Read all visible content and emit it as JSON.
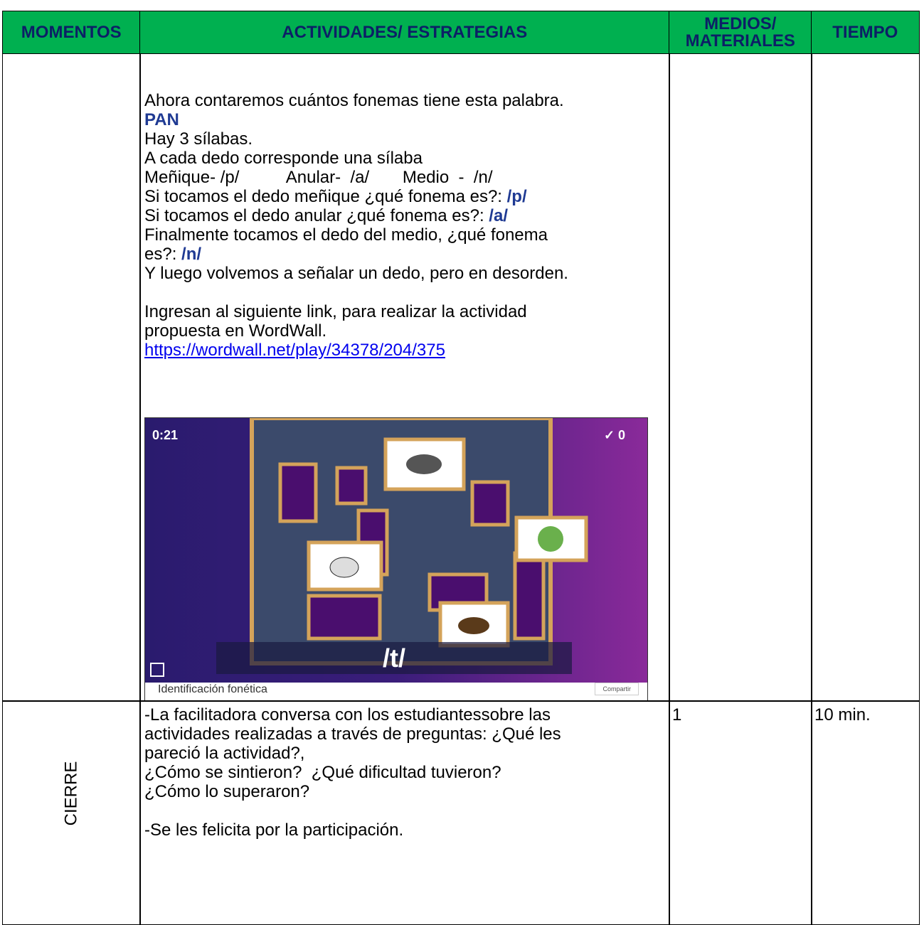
{
  "table": {
    "header": [
      "MOMENTOS",
      "ACTIVIDADES/ ESTRATEGIAS",
      "MEDIOS/ MATERIALES",
      "TIEMPO"
    ],
    "rows": [
      {
        "momento": "",
        "actividades": [
          [
            "Ahora contaremos cuántos fonemas tiene esta palabra."
          ],
          [
            {
              "strong": "PAN"
            }
          ],
          [
            "Hay 3 sílabas."
          ],
          [
            "A cada dedo corresponde una sílaba"
          ],
          [
            "Meñique- /p/          Anular-  /a/       Medio  -  /n/"
          ],
          [
            "Si tocamos el dedo meñique ¿qué fonema es?: ",
            {
              "strong": "/p/"
            }
          ],
          [
            "Si tocamos el dedo anular ¿qué fonema es?: ",
            {
              "strong": "/a/"
            }
          ],
          [
            "Finalmente tocamos el dedo del medio, ¿qué fonema"
          ],
          [
            "es?: ",
            {
              "strong": "/n/"
            }
          ],
          [
            "Y luego volvemos a señalar un dedo, pero en desorden."
          ],
          [],
          [
            "Ingresan al siguiente link, para realizar la actividad"
          ],
          [
            "propuesta en WordWall."
          ],
          [
            {
              "link": "https://wordwall.net/play/34378/204/375"
            }
          ]
        ],
        "screenshot": {
          "timer": "0:21",
          "score": "✓ 0",
          "sound": "/t/",
          "caption": "Identificación fonética",
          "button": "Compartir"
        },
        "medios": "",
        "tiempo": ""
      },
      {
        "momento": "CIERRE",
        "actividades": [
          [
            "-La facilitadora conversa con los estudiantessobre las"
          ],
          [
            "actividades realizadas a través de preguntas: ¿Qué les"
          ],
          [
            "pareció la actividad?,"
          ],
          [
            "¿Cómo se sintieron?  ¿Qué dificultad tuvieron?"
          ],
          [
            "¿Cómo lo superaron?"
          ],
          [],
          [
            "-Se les felicita por la participación."
          ]
        ],
        "medios": "1",
        "tiempo": "10 min."
      }
    ]
  }
}
